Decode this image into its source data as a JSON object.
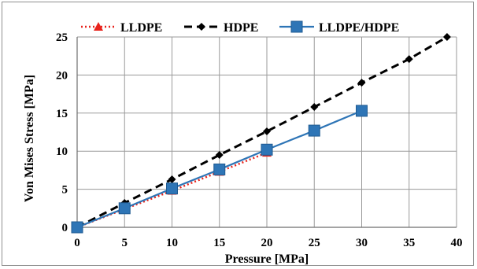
{
  "chart_data": {
    "type": "line",
    "xlabel": "Pressure [MPa]",
    "ylabel": "Von Mises Stress [MPa]",
    "xlim": [
      0,
      40
    ],
    "ylim": [
      0,
      25
    ],
    "xticks": [
      0,
      5,
      10,
      15,
      20,
      25,
      30,
      35,
      40
    ],
    "yticks": [
      0,
      5,
      10,
      15,
      20,
      25
    ],
    "grid": true,
    "legend_position": "top",
    "series": [
      {
        "name": "LLDPE",
        "color": "#e8231c",
        "line": "dotted",
        "marker": "triangle",
        "x": [
          0,
          5,
          10,
          15,
          20
        ],
        "y": [
          0,
          2.4,
          4.8,
          7.3,
          9.8
        ]
      },
      {
        "name": "HDPE",
        "color": "#000000",
        "line": "dashed",
        "marker": "diamond",
        "x": [
          0,
          5,
          10,
          15,
          20,
          25,
          30,
          35,
          39
        ],
        "y": [
          0,
          3.2,
          6.3,
          9.5,
          12.6,
          15.8,
          19.0,
          22.1,
          25.0
        ]
      },
      {
        "name": "LLDPE/HDPE",
        "color": "#2e75b6",
        "line": "solid",
        "marker": "square",
        "x": [
          0,
          5,
          10,
          15,
          20,
          25,
          30
        ],
        "y": [
          0,
          2.5,
          5.1,
          7.6,
          10.2,
          12.7,
          15.3
        ]
      }
    ]
  }
}
